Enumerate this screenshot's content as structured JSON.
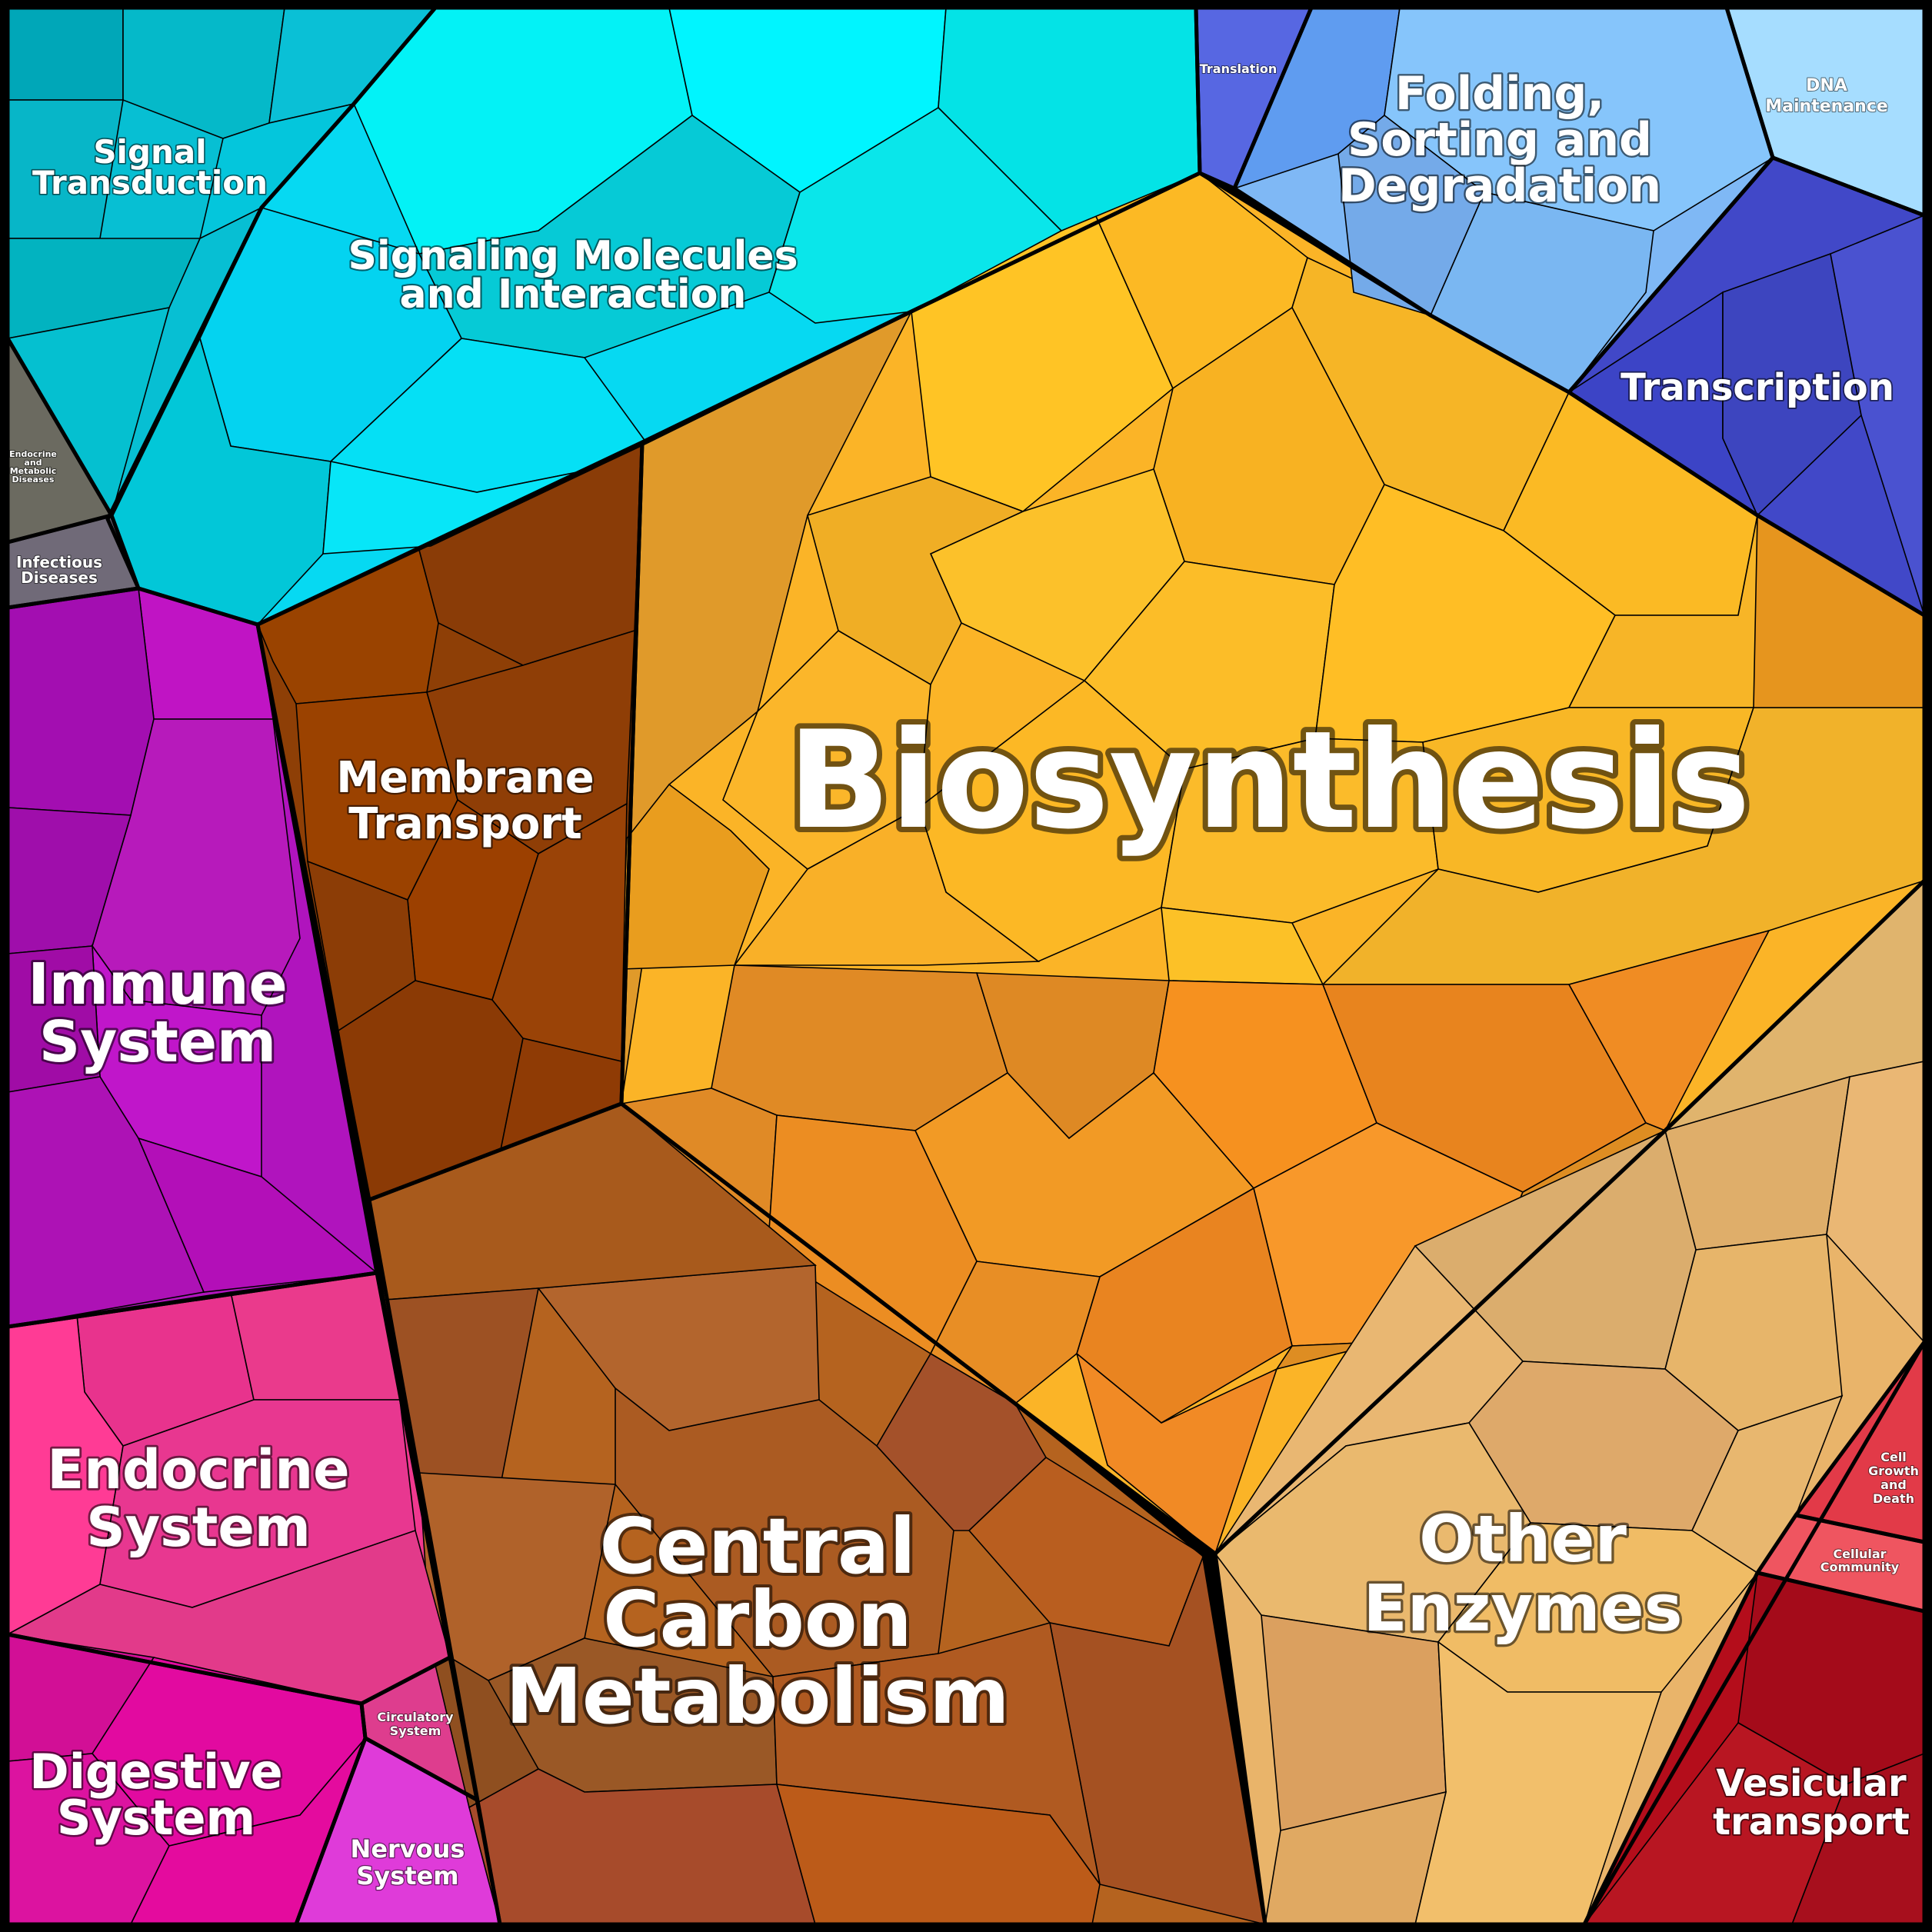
{
  "title": "",
  "regions": [
    {
      "key": "biosynthesis",
      "label": "Biosynthesis",
      "color": "#fbb427"
    },
    {
      "key": "membrane_transport",
      "label": "Membrane Transport",
      "color": "#8e3f06"
    },
    {
      "key": "central_carbon",
      "label": "Central Carbon Metabolism",
      "color": "#b5631f"
    },
    {
      "key": "other_enzymes",
      "label": "Other Enzymes",
      "color": "#e9b46a"
    },
    {
      "key": "signal_transduction",
      "label": "Signal Transduction",
      "color": "#07bfd3"
    },
    {
      "key": "signaling_molecules",
      "label": "Signaling Molecules and Interaction",
      "color": "#06d9f2"
    },
    {
      "key": "translation",
      "label": "Translation",
      "color": "#5767e2"
    },
    {
      "key": "folding",
      "label": "Folding, Sorting and Degradation",
      "color": "#7fb8f5"
    },
    {
      "key": "dna_maintenance",
      "label": "DNA Maintenance",
      "color": "#a6ddff"
    },
    {
      "key": "transcription",
      "label": "Transcription",
      "color": "#4148c8"
    },
    {
      "key": "endocrine_metabolic",
      "label": "Endocrine and Metabolic Diseases",
      "color": "#6b6a60"
    },
    {
      "key": "infectious",
      "label": "Infectious Diseases",
      "color": "#706a78"
    },
    {
      "key": "immune",
      "label": "Immune System",
      "color": "#b014bd"
    },
    {
      "key": "endocrine",
      "label": "Endocrine System",
      "color": "#f0388f"
    },
    {
      "key": "digestive",
      "label": "Digestive System",
      "color": "#e1119c"
    },
    {
      "key": "circulatory",
      "label": "Circulatory System",
      "color": "#de3d8e"
    },
    {
      "key": "nervous",
      "label": "Nervous System",
      "color": "#df3bd9"
    },
    {
      "key": "cell_growth",
      "label": "Cell Growth and Death",
      "color": "#e23a48"
    },
    {
      "key": "cellular_community",
      "label": "Cellular Community",
      "color": "#ef5560"
    },
    {
      "key": "vesicular",
      "label": "Vesicular transport",
      "color": "#b40d1b"
    }
  ]
}
